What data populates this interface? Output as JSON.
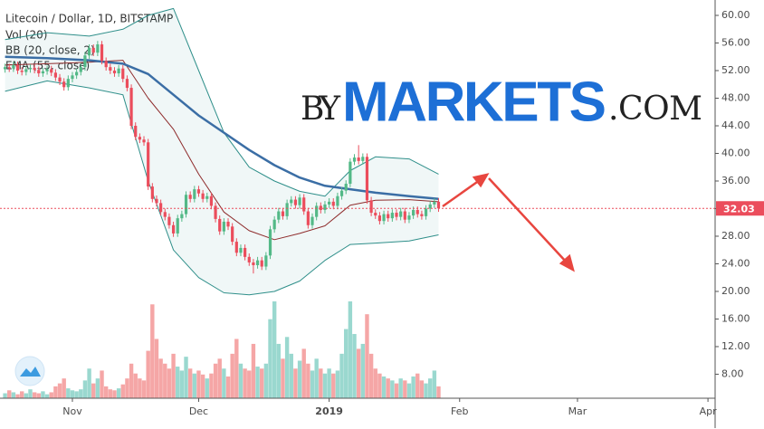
{
  "chart_data": {
    "type": "candlestick",
    "title": "Litecoin / Dollar, 1D, BITSTAMP",
    "legend": [
      "Vol (20)",
      "BB (20, close, 2)",
      "EMA (55, close)"
    ],
    "watermark": [
      "BY",
      "MARKETS",
      ".COM"
    ],
    "open": [
      52.2,
      52.5,
      52.3,
      52.8,
      52.0,
      51.8,
      52.2,
      52.4,
      52.1,
      51.6,
      51.9,
      52.2,
      51.7,
      51.0,
      50.4,
      49.6,
      50.8,
      51.3,
      51.8,
      52.5,
      54.2,
      55.3,
      54.6,
      55.8,
      53.4,
      52.5,
      52.0,
      51.6,
      52.3,
      50.8,
      49.5,
      44.0,
      42.4,
      42.0,
      41.6,
      35.2,
      33.4,
      32.8,
      31.5,
      30.8,
      29.6,
      28.4,
      30.6,
      31.2,
      34.0,
      33.4,
      34.8,
      34.2,
      33.4,
      33.8,
      32.4,
      30.5,
      28.7,
      30.1,
      29.4,
      27.2,
      25.6,
      26.3,
      25.0,
      24.2,
      23.8,
      24.5,
      23.6,
      25.2,
      29.0,
      30.4,
      31.6,
      30.9,
      32.8,
      33.3,
      32.5,
      33.6,
      31.6,
      29.6,
      30.8,
      32.4,
      31.8,
      32.6,
      33.0,
      32.4,
      33.8,
      34.6,
      35.6,
      38.8,
      39.4,
      38.9,
      39.5,
      33.2,
      31.4,
      31.0,
      30.2,
      31.2,
      30.6,
      31.4,
      30.8,
      31.6,
      30.4,
      31.0,
      31.8,
      31.2,
      30.9,
      32.0,
      32.6,
      33.0
    ],
    "high": [
      53.0,
      53.0,
      53.3,
      53.3,
      52.5,
      52.7,
      52.9,
      52.9,
      52.6,
      52.4,
      52.7,
      52.7,
      52.2,
      51.5,
      50.9,
      51.3,
      51.8,
      52.3,
      53.0,
      54.7,
      55.8,
      55.8,
      56.3,
      56.3,
      53.9,
      53.0,
      52.5,
      52.8,
      52.8,
      51.3,
      50.0,
      44.5,
      42.9,
      42.5,
      42.1,
      35.7,
      33.9,
      33.3,
      32.0,
      31.3,
      30.1,
      31.1,
      31.7,
      34.5,
      34.5,
      35.3,
      35.3,
      34.7,
      34.3,
      34.3,
      32.9,
      31.0,
      30.6,
      30.6,
      29.9,
      27.7,
      26.8,
      26.8,
      25.5,
      24.7,
      25.0,
      25.0,
      25.7,
      29.5,
      30.9,
      32.1,
      32.1,
      33.3,
      33.8,
      33.8,
      34.1,
      34.1,
      32.1,
      31.3,
      32.9,
      32.9,
      33.1,
      33.5,
      33.5,
      34.3,
      35.1,
      36.1,
      39.3,
      39.9,
      41.2,
      40.0,
      40.0,
      33.7,
      31.9,
      31.5,
      31.7,
      31.7,
      31.9,
      31.9,
      32.1,
      32.1,
      31.5,
      32.3,
      32.3,
      31.7,
      32.5,
      33.1,
      33.5,
      33.5
    ],
    "low": [
      51.7,
      51.8,
      51.8,
      51.5,
      51.3,
      51.3,
      51.7,
      51.6,
      51.1,
      51.1,
      51.4,
      51.2,
      50.5,
      49.9,
      49.1,
      49.1,
      50.3,
      50.8,
      51.3,
      52.0,
      53.7,
      54.1,
      54.1,
      52.9,
      52.0,
      51.5,
      51.1,
      51.1,
      50.3,
      49.0,
      43.5,
      41.9,
      41.5,
      41.1,
      34.7,
      32.9,
      32.3,
      31.0,
      30.3,
      29.1,
      27.9,
      27.9,
      30.1,
      30.7,
      32.9,
      32.9,
      33.7,
      32.9,
      32.9,
      31.9,
      30.0,
      28.2,
      28.2,
      28.9,
      26.7,
      25.1,
      25.1,
      24.5,
      23.7,
      22.6,
      23.3,
      23.1,
      23.1,
      24.7,
      28.5,
      29.9,
      30.4,
      30.4,
      32.3,
      32.0,
      32.0,
      31.1,
      29.1,
      29.1,
      30.3,
      31.3,
      31.3,
      32.1,
      31.9,
      31.9,
      33.3,
      34.1,
      35.1,
      38.3,
      38.4,
      38.4,
      32.7,
      30.9,
      30.5,
      29.7,
      29.7,
      30.1,
      30.1,
      30.3,
      30.3,
      29.9,
      29.9,
      30.5,
      30.7,
      30.4,
      30.4,
      31.5,
      32.1,
      31.53
    ],
    "close": [
      52.5,
      52.3,
      52.8,
      52.0,
      51.8,
      52.2,
      52.4,
      52.1,
      51.6,
      51.9,
      52.2,
      51.7,
      51.0,
      50.4,
      49.6,
      50.8,
      51.3,
      51.8,
      52.5,
      54.2,
      55.3,
      54.6,
      55.8,
      53.4,
      52.5,
      52.0,
      51.6,
      52.3,
      50.8,
      49.5,
      44.0,
      42.4,
      42.0,
      41.6,
      35.2,
      33.4,
      32.8,
      31.5,
      30.8,
      29.6,
      28.4,
      30.6,
      31.2,
      34.0,
      33.4,
      34.8,
      34.2,
      33.4,
      33.8,
      32.4,
      30.5,
      28.7,
      30.1,
      29.4,
      27.2,
      25.6,
      26.3,
      25.0,
      24.2,
      23.8,
      24.5,
      23.6,
      25.2,
      29.0,
      30.4,
      31.6,
      30.9,
      32.8,
      33.3,
      32.5,
      33.6,
      31.6,
      29.6,
      30.8,
      32.4,
      31.8,
      32.6,
      33.0,
      32.4,
      33.8,
      34.6,
      35.6,
      38.8,
      39.4,
      38.9,
      39.5,
      33.2,
      31.4,
      31.0,
      30.2,
      31.2,
      30.6,
      31.4,
      30.8,
      31.6,
      30.4,
      31.0,
      31.8,
      31.2,
      30.9,
      32.0,
      32.6,
      33.0,
      32.03
    ],
    "volume": [
      5,
      8,
      6,
      4,
      7,
      5,
      9,
      6,
      5,
      7,
      4,
      6,
      12,
      15,
      20,
      10,
      8,
      7,
      9,
      18,
      30,
      15,
      20,
      28,
      12,
      9,
      8,
      10,
      14,
      20,
      35,
      25,
      20,
      18,
      48,
      95,
      60,
      40,
      35,
      30,
      45,
      32,
      28,
      42,
      30,
      25,
      28,
      24,
      20,
      25,
      35,
      40,
      30,
      22,
      45,
      60,
      35,
      30,
      28,
      55,
      32,
      30,
      35,
      80,
      98,
      55,
      40,
      62,
      45,
      30,
      38,
      50,
      35,
      28,
      40,
      30,
      25,
      30,
      25,
      28,
      45,
      70,
      98,
      65,
      50,
      55,
      85,
      45,
      30,
      25,
      22,
      20,
      18,
      15,
      20,
      18,
      15,
      22,
      25,
      18,
      15,
      20,
      28,
      12
    ],
    "up_color": "#53b987",
    "down_color": "#eb4d5c",
    "volume_up_color": "#9ad8cf",
    "volume_down_color": "#f5a6a6",
    "overlays": {
      "x": [
        0,
        10,
        20,
        28,
        34,
        40,
        46,
        52,
        58,
        64,
        70,
        76,
        82,
        88,
        96,
        103
      ],
      "bb_upper": [
        56.5,
        57.5,
        57.0,
        58.0,
        60.0,
        61.0,
        52.0,
        43.0,
        38.0,
        36.0,
        34.5,
        33.8,
        37.5,
        39.5,
        39.2,
        37.0
      ],
      "bb_lower": [
        49.0,
        50.5,
        49.5,
        48.5,
        36.0,
        26.0,
        22.0,
        19.8,
        19.5,
        20.0,
        21.5,
        24.5,
        26.8,
        27.0,
        27.3,
        28.2
      ],
      "bb_basis": [
        52.8,
        53.0,
        53.2,
        53.5,
        48.0,
        43.5,
        37.0,
        31.5,
        28.8,
        27.5,
        28.4,
        29.5,
        32.5,
        33.2,
        33.3,
        33.0
      ],
      "ema": [
        54.0,
        53.8,
        53.5,
        53.0,
        51.5,
        48.5,
        45.5,
        43.0,
        40.5,
        38.3,
        36.5,
        35.3,
        34.8,
        34.3,
        33.8,
        33.4
      ],
      "band_color": "#2f8f8a",
      "basis_color": "#8e2b2b",
      "ema_color": "#3b6ea5"
    },
    "xlim": [
      -1.2,
      168.7
    ],
    "xticks": [
      {
        "value": 16,
        "label": "Nov"
      },
      {
        "value": 46,
        "label": "Dec"
      },
      {
        "value": 77,
        "label": "2019"
      },
      {
        "value": 108,
        "label": "Feb"
      },
      {
        "value": 136,
        "label": "Mar"
      },
      {
        "value": 167,
        "label": "Apr"
      }
    ],
    "ylim": [
      4.52,
      62.23
    ],
    "yticks": [
      {
        "value": 60,
        "label": "60.00"
      },
      {
        "value": 56,
        "label": "56.00"
      },
      {
        "value": 52,
        "label": "52.00"
      },
      {
        "value": 48,
        "label": "48.00"
      },
      {
        "value": 44,
        "label": "44.00"
      },
      {
        "value": 40,
        "label": "40.00"
      },
      {
        "value": 36,
        "label": "36.00"
      },
      {
        "value": 32,
        "label": "32.00"
      },
      {
        "value": 28,
        "label": "28.00"
      },
      {
        "value": 24,
        "label": "24.00"
      },
      {
        "value": 20,
        "label": "20.00"
      },
      {
        "value": 16,
        "label": "16.00"
      },
      {
        "value": 12,
        "label": "12.00"
      },
      {
        "value": 8,
        "label": "8.00"
      }
    ]
  }
}
